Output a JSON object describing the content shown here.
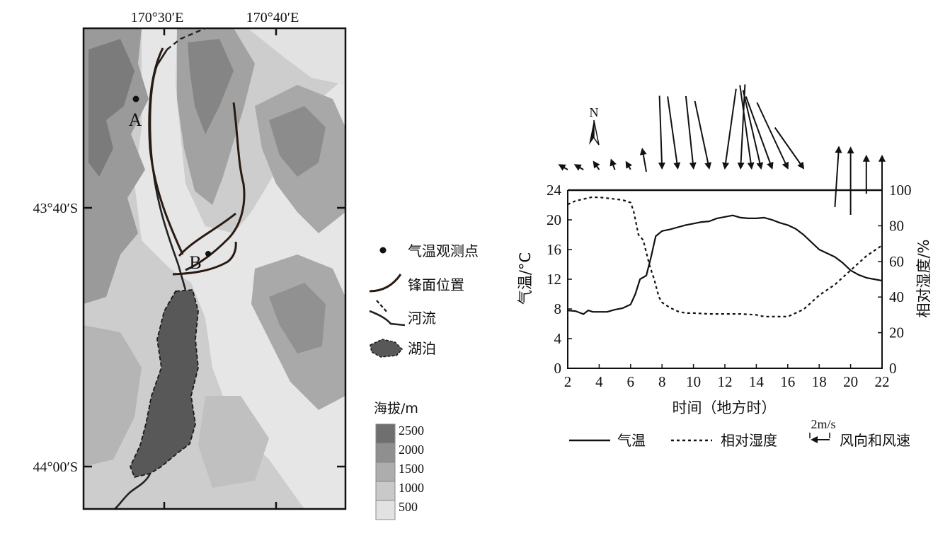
{
  "map": {
    "top_lon_labels": [
      "170°30′E",
      "170°40′E"
    ],
    "left_lat_labels": [
      "43°40′S",
      "44°00′S"
    ],
    "point_labels": [
      "A",
      "B"
    ],
    "legend": {
      "items": [
        "气温观测点",
        "锋面位置",
        "河流",
        "湖泊"
      ],
      "elevation_title": "海拔/m",
      "elevation_levels": [
        "2500",
        "2000",
        "1500",
        "1000",
        "500"
      ],
      "elevation_colors": [
        "#6f6f6f",
        "#8f8f8f",
        "#adadad",
        "#c9c9c9",
        "#e2e2e2"
      ]
    }
  },
  "chart_data": {
    "type": "line",
    "xlabel": "时间（地方时）",
    "ylabel_left": "气温/°C",
    "ylabel_right": "相对湿度/%",
    "x_ticks": [
      2,
      4,
      6,
      8,
      10,
      12,
      14,
      16,
      18,
      20,
      22
    ],
    "y_left_ticks": [
      0,
      4,
      8,
      12,
      16,
      20,
      24
    ],
    "y_right_ticks": [
      0,
      20,
      40,
      60,
      80,
      100
    ],
    "xlim": [
      2,
      22
    ],
    "ylim_left": [
      0,
      24
    ],
    "ylim_right": [
      0,
      100
    ],
    "series": [
      {
        "name": "气温",
        "style": "solid",
        "x": [
          2,
          2.5,
          3,
          3.3,
          3.6,
          4,
          4.5,
          5,
          5.5,
          6,
          6.3,
          6.6,
          7,
          7.3,
          7.6,
          8,
          8.5,
          9,
          9.5,
          10,
          10.5,
          11,
          11.5,
          12,
          12.5,
          13,
          13.5,
          14,
          14.5,
          15,
          15.5,
          16,
          16.5,
          17,
          17.5,
          18,
          18.5,
          19,
          19.5,
          20,
          20.5,
          21,
          21.5,
          22
        ],
        "y": [
          7.8,
          7.7,
          7.3,
          7.8,
          7.6,
          7.6,
          7.6,
          7.9,
          8.1,
          8.6,
          10,
          12,
          12.5,
          15,
          17.8,
          18.5,
          18.7,
          19,
          19.3,
          19.5,
          19.7,
          19.8,
          20.2,
          20.4,
          20.6,
          20.3,
          20.2,
          20.2,
          20.3,
          20,
          19.6,
          19.3,
          18.8,
          18,
          17,
          16,
          15.5,
          15,
          14.2,
          13.2,
          12.6,
          12.2,
          12,
          11.8
        ]
      },
      {
        "name": "相对湿度",
        "style": "dashed",
        "x": [
          2,
          2.5,
          3,
          3.5,
          4,
          4.5,
          5,
          5.5,
          6,
          6.2,
          6.5,
          6.8,
          7,
          7.2,
          7.5,
          7.8,
          8,
          8.5,
          9,
          9.5,
          10,
          11,
          12,
          13,
          14,
          14.5,
          15,
          16,
          16.5,
          17,
          17.5,
          18,
          18.5,
          19,
          19.5,
          20,
          20.5,
          21,
          21.5,
          22
        ],
        "y": [
          92,
          94,
          95,
          96,
          96,
          95.5,
          95,
          94.5,
          93,
          88,
          75,
          72,
          65,
          58,
          50,
          40,
          37,
          34,
          32,
          31,
          31,
          30.5,
          30.5,
          30.5,
          30,
          29,
          29,
          29,
          31,
          33,
          37,
          41,
          44,
          47,
          51,
          55,
          59,
          63,
          66,
          69
        ]
      }
    ],
    "wind": {
      "scale_label": "2m/s",
      "north_label": "N",
      "barbs": [
        {
          "x": 2.0,
          "angle": 300,
          "speed": 0.5
        },
        {
          "x": 3.0,
          "angle": 300,
          "speed": 0.5
        },
        {
          "x": 4.0,
          "angle": 325,
          "speed": 0.5
        },
        {
          "x": 5.0,
          "angle": 340,
          "speed": 0.55
        },
        {
          "x": 6.0,
          "angle": 330,
          "speed": 0.45
        },
        {
          "x": 7.0,
          "angle": 350,
          "speed": 1.2
        },
        {
          "x": 8.0,
          "angle": 178,
          "speed": 3.8
        },
        {
          "x": 9.0,
          "angle": 172,
          "speed": 3.8
        },
        {
          "x": 10.0,
          "angle": 174,
          "speed": 3.8
        },
        {
          "x": 11.0,
          "angle": 168,
          "speed": 3.6
        },
        {
          "x": 12.0,
          "angle": 188,
          "speed": 4.2
        },
        {
          "x": 13.0,
          "angle": 183,
          "speed": 4.4
        },
        {
          "x": 13.7,
          "angle": 172,
          "speed": 4.4
        },
        {
          "x": 14.3,
          "angle": 167,
          "speed": 4.2
        },
        {
          "x": 15.0,
          "angle": 160,
          "speed": 4.0
        },
        {
          "x": 16.0,
          "angle": 155,
          "speed": 3.8
        },
        {
          "x": 17.0,
          "angle": 145,
          "speed": 2.6
        },
        {
          "x": 19.0,
          "angle": 5,
          "speed": 2.4
        },
        {
          "x": 20.0,
          "angle": 0,
          "speed": 2.4
        },
        {
          "x": 21.0,
          "angle": 0,
          "speed": 1.6
        },
        {
          "x": 22.0,
          "angle": 0,
          "speed": 1.6
        }
      ]
    },
    "legend": [
      "气温",
      "相对湿度",
      "风向和风速"
    ]
  }
}
